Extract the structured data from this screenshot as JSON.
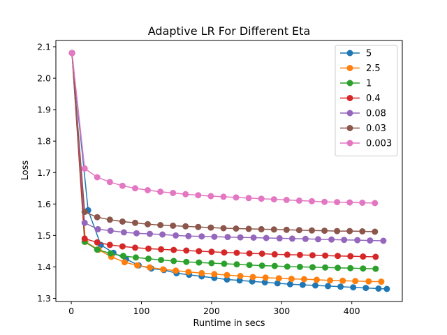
{
  "chart_data": {
    "type": "line",
    "title": "Adaptive LR For Different Eta",
    "xlabel": "Runtime in secs",
    "ylabel": "Loss",
    "xlim": [
      -22,
      472
    ],
    "ylim": [
      1.29,
      2.12
    ],
    "xticks": [
      0,
      100,
      200,
      300,
      400
    ],
    "yticks": [
      1.3,
      1.4,
      1.5,
      1.6,
      1.7,
      1.8,
      1.9,
      2.0,
      2.1
    ],
    "xtick_labels": [
      "0",
      "100",
      "200",
      "300",
      "400"
    ],
    "ytick_labels": [
      "1.3",
      "1.4",
      "1.5",
      "1.6",
      "1.7",
      "1.8",
      "1.9",
      "2.0",
      "2.1"
    ],
    "grid": false,
    "legend_position": "top-right",
    "series": [
      {
        "name": "5",
        "color": "#1f77b4",
        "x": [
          1,
          24,
          42,
          60,
          78,
          96,
          114,
          132,
          150,
          168,
          186,
          204,
          222,
          240,
          258,
          276,
          294,
          312,
          330,
          348,
          366,
          384,
          402,
          420,
          438,
          450
        ],
        "y": [
          2.08,
          1.58,
          1.47,
          1.445,
          1.425,
          1.405,
          1.395,
          1.39,
          1.38,
          1.375,
          1.37,
          1.365,
          1.36,
          1.357,
          1.354,
          1.351,
          1.348,
          1.345,
          1.343,
          1.341,
          1.339,
          1.337,
          1.335,
          1.333,
          1.331,
          1.33
        ]
      },
      {
        "name": "2.5",
        "color": "#ff7f0e",
        "x": [
          1,
          20,
          39,
          57,
          76,
          94,
          112,
          131,
          149,
          167,
          186,
          204,
          222,
          241,
          259,
          277,
          296,
          314,
          332,
          350,
          369,
          387,
          405,
          424,
          442
        ],
        "y": [
          2.08,
          1.48,
          1.455,
          1.432,
          1.415,
          1.405,
          1.398,
          1.392,
          1.388,
          1.384,
          1.38,
          1.377,
          1.374,
          1.371,
          1.368,
          1.366,
          1.364,
          1.362,
          1.361,
          1.359,
          1.357,
          1.356,
          1.355,
          1.354,
          1.353
        ]
      },
      {
        "name": "1",
        "color": "#2ca02c",
        "x": [
          1,
          19,
          37,
          56,
          74,
          92,
          110,
          128,
          146,
          164,
          182,
          200,
          218,
          236,
          254,
          272,
          290,
          308,
          326,
          344,
          362,
          380,
          398,
          416,
          434
        ],
        "y": [
          2.08,
          1.48,
          1.455,
          1.443,
          1.435,
          1.43,
          1.426,
          1.422,
          1.419,
          1.416,
          1.414,
          1.412,
          1.41,
          1.408,
          1.406,
          1.404,
          1.403,
          1.401,
          1.4,
          1.399,
          1.398,
          1.397,
          1.396,
          1.395,
          1.394
        ]
      },
      {
        "name": "0.4",
        "color": "#d62728",
        "x": [
          1,
          19,
          37,
          55,
          73,
          91,
          110,
          128,
          146,
          164,
          182,
          200,
          218,
          236,
          254,
          272,
          290,
          308,
          326,
          344,
          362,
          380,
          398,
          416,
          434
        ],
        "y": [
          2.08,
          1.49,
          1.478,
          1.47,
          1.465,
          1.461,
          1.458,
          1.456,
          1.454,
          1.452,
          1.45,
          1.448,
          1.446,
          1.445,
          1.443,
          1.442,
          1.44,
          1.439,
          1.438,
          1.437,
          1.436,
          1.435,
          1.434,
          1.433,
          1.432
        ]
      },
      {
        "name": "0.08",
        "color": "#9467bd",
        "x": [
          1,
          19,
          38,
          56,
          75,
          93,
          112,
          130,
          149,
          167,
          186,
          204,
          223,
          241,
          260,
          278,
          297,
          315,
          334,
          352,
          371,
          389,
          408,
          426,
          445
        ],
        "y": [
          2.08,
          1.54,
          1.52,
          1.515,
          1.51,
          1.507,
          1.505,
          1.503,
          1.5,
          1.498,
          1.497,
          1.496,
          1.495,
          1.494,
          1.493,
          1.492,
          1.491,
          1.49,
          1.489,
          1.488,
          1.487,
          1.486,
          1.485,
          1.484,
          1.483
        ]
      },
      {
        "name": "0.03",
        "color": "#8c564b",
        "x": [
          1,
          19,
          37,
          55,
          73,
          91,
          109,
          127,
          145,
          163,
          181,
          199,
          217,
          235,
          253,
          271,
          289,
          307,
          325,
          343,
          361,
          379,
          397,
          415,
          433
        ],
        "y": [
          2.08,
          1.575,
          1.558,
          1.55,
          1.544,
          1.54,
          1.536,
          1.533,
          1.531,
          1.529,
          1.527,
          1.525,
          1.523,
          1.522,
          1.521,
          1.52,
          1.519,
          1.518,
          1.517,
          1.516,
          1.515,
          1.514,
          1.514,
          1.513,
          1.512
        ]
      },
      {
        "name": "0.003",
        "color": "#e377c2",
        "x": [
          1,
          19,
          37,
          55,
          73,
          91,
          109,
          127,
          145,
          163,
          181,
          199,
          217,
          235,
          253,
          271,
          289,
          307,
          325,
          343,
          361,
          379,
          397,
          415,
          433
        ],
        "y": [
          2.08,
          1.713,
          1.685,
          1.67,
          1.658,
          1.65,
          1.644,
          1.639,
          1.635,
          1.631,
          1.628,
          1.625,
          1.623,
          1.621,
          1.619,
          1.617,
          1.615,
          1.613,
          1.611,
          1.609,
          1.607,
          1.606,
          1.605,
          1.604,
          1.603
        ]
      }
    ]
  }
}
